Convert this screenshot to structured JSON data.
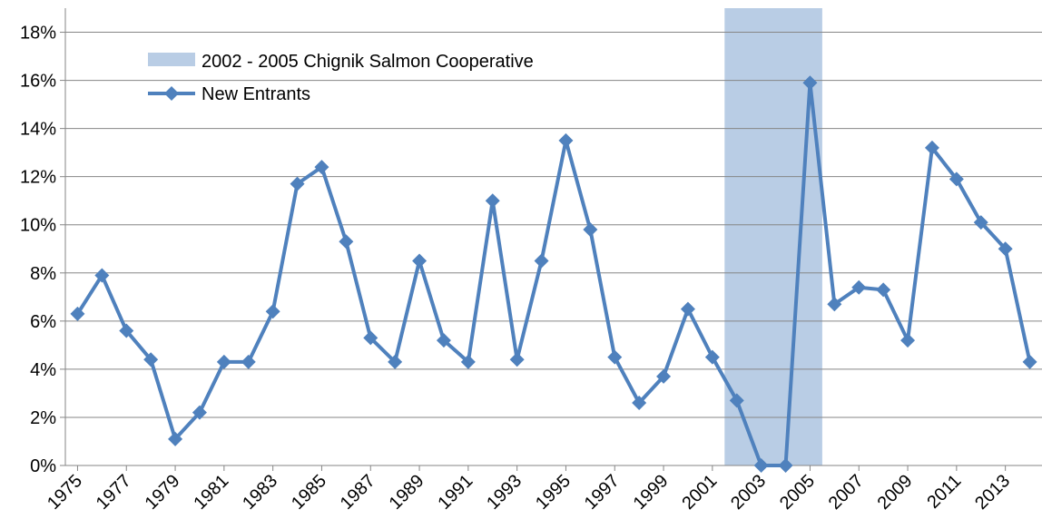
{
  "chart_data": {
    "type": "line",
    "x": [
      1975,
      1976,
      1977,
      1978,
      1979,
      1980,
      1981,
      1982,
      1983,
      1984,
      1985,
      1986,
      1987,
      1988,
      1989,
      1990,
      1991,
      1992,
      1993,
      1994,
      1995,
      1996,
      1997,
      1998,
      1999,
      2000,
      2001,
      2002,
      2003,
      2004,
      2005,
      2006,
      2007,
      2008,
      2009,
      2010,
      2011,
      2012,
      2013,
      2014
    ],
    "series": [
      {
        "name": "New Entrants",
        "color": "#4f81bd",
        "values": [
          6.3,
          7.9,
          5.6,
          4.4,
          1.1,
          2.2,
          4.3,
          4.3,
          6.4,
          11.7,
          12.4,
          9.3,
          5.3,
          4.3,
          8.5,
          5.2,
          4.3,
          11.0,
          4.4,
          8.5,
          13.5,
          9.8,
          4.5,
          2.6,
          3.7,
          6.5,
          4.5,
          2.7,
          0,
          0,
          15.9,
          6.7,
          7.4,
          7.3,
          5.2,
          13.2,
          11.9,
          10.1,
          9.0,
          4.3
        ]
      }
    ],
    "highlight": {
      "label": "2002 - 2005 Chignik Salmon Cooperative",
      "span": [
        2001.5,
        2005.5
      ],
      "color": "#b9cde5"
    },
    "xlim": [
      1974.5,
      2014.5
    ],
    "xticks": [
      1975,
      1977,
      1979,
      1981,
      1983,
      1985,
      1987,
      1989,
      1991,
      1993,
      1995,
      1997,
      1999,
      2001,
      2003,
      2005,
      2007,
      2009,
      2011,
      2013
    ],
    "ylim": [
      0,
      19
    ],
    "yticks": [
      {
        "value": 0,
        "label": "0%"
      },
      {
        "value": 2,
        "label": "2%"
      },
      {
        "value": 4,
        "label": "4%"
      },
      {
        "value": 6,
        "label": "6%"
      },
      {
        "value": 8,
        "label": "8%"
      },
      {
        "value": 10,
        "label": "10%"
      },
      {
        "value": 12,
        "label": "12%"
      },
      {
        "value": 14,
        "label": "14%"
      },
      {
        "value": 16,
        "label": "16%"
      },
      {
        "value": 18,
        "label": "18%"
      }
    ],
    "grid": true
  }
}
